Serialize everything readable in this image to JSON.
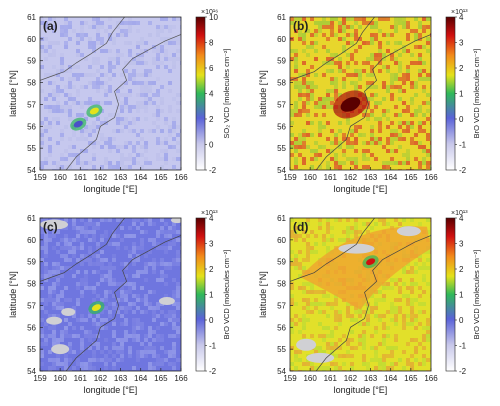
{
  "chart_data": [
    {
      "type": "heatmap",
      "panel_label": "(a)",
      "xlabel": "longitude [°E]",
      "ylabel": "latitude [°N]",
      "xlim": [
        159,
        166
      ],
      "ylim": [
        54,
        61
      ],
      "xticks": [
        "159",
        "160",
        "161",
        "162",
        "163",
        "164",
        "165",
        "166"
      ],
      "yticks": [
        "54",
        "55",
        "56",
        "57",
        "58",
        "59",
        "60",
        "61"
      ],
      "colorbar": {
        "label": "SO₂ VCD [molecules cm⁻²]",
        "exponent": "×10¹⁶",
        "range": [
          -2,
          10
        ],
        "ticks": [
          "-2",
          "0",
          "2",
          "4",
          "6",
          "8",
          "10"
        ]
      },
      "hotspots": [
        {
          "lon": 161.7,
          "lat": 56.7,
          "value": 5.5
        },
        {
          "lon": 160.9,
          "lat": 56.1,
          "value": 1.0
        }
      ]
    },
    {
      "type": "heatmap",
      "panel_label": "(b)",
      "xlabel": "longitude [°E]",
      "ylabel": "latitude [°N]",
      "xlim": [
        159,
        166
      ],
      "ylim": [
        54,
        61
      ],
      "xticks": [
        "159",
        "160",
        "161",
        "162",
        "163",
        "164",
        "165",
        "166"
      ],
      "yticks": [
        "54",
        "55",
        "56",
        "57",
        "58",
        "59",
        "60",
        "61"
      ],
      "colorbar": {
        "label": "BrO VCD [molecules cm⁻²]",
        "exponent": "×10¹³",
        "range": [
          -2,
          4
        ],
        "ticks": [
          "-2",
          "-1",
          "0",
          "1",
          "2",
          "3",
          "4"
        ]
      },
      "hotspots": [
        {
          "lon": 162.0,
          "lat": 57.0,
          "value": 4.0
        }
      ]
    },
    {
      "type": "heatmap",
      "panel_label": "(c)",
      "xlabel": "longitude [°E]",
      "ylabel": "latitude [°N]",
      "xlim": [
        159,
        166
      ],
      "ylim": [
        54,
        61
      ],
      "xticks": [
        "159",
        "160",
        "161",
        "162",
        "163",
        "164",
        "165",
        "166"
      ],
      "yticks": [
        "54",
        "55",
        "56",
        "57",
        "58",
        "59",
        "60",
        "61"
      ],
      "colorbar": {
        "label": "BrO VCD [molecules cm⁻²]",
        "exponent": "×10¹³",
        "range": [
          -2,
          4
        ],
        "ticks": [
          "-2",
          "-1",
          "0",
          "1",
          "2",
          "3",
          "4"
        ]
      },
      "hotspots": [
        {
          "lon": 161.8,
          "lat": 56.9,
          "value": 1.6
        }
      ]
    },
    {
      "type": "heatmap",
      "panel_label": "(d)",
      "xlabel": "longitude [°E]",
      "ylabel": "latitude [°N]",
      "xlim": [
        159,
        166
      ],
      "ylim": [
        54,
        61
      ],
      "xticks": [
        "159",
        "160",
        "161",
        "162",
        "163",
        "164",
        "165",
        "166"
      ],
      "yticks": [
        "54",
        "55",
        "56",
        "57",
        "58",
        "59",
        "60",
        "61"
      ],
      "colorbar": {
        "label": "BrO VCD [molecules cm⁻²]",
        "exponent": "×10¹³",
        "range": [
          -2,
          4
        ],
        "ticks": [
          "-2",
          "-1",
          "0",
          "1",
          "2",
          "3",
          "4"
        ]
      },
      "hotspots": [
        {
          "lon": 163.0,
          "lat": 59.0,
          "value": 2.4
        }
      ]
    }
  ]
}
